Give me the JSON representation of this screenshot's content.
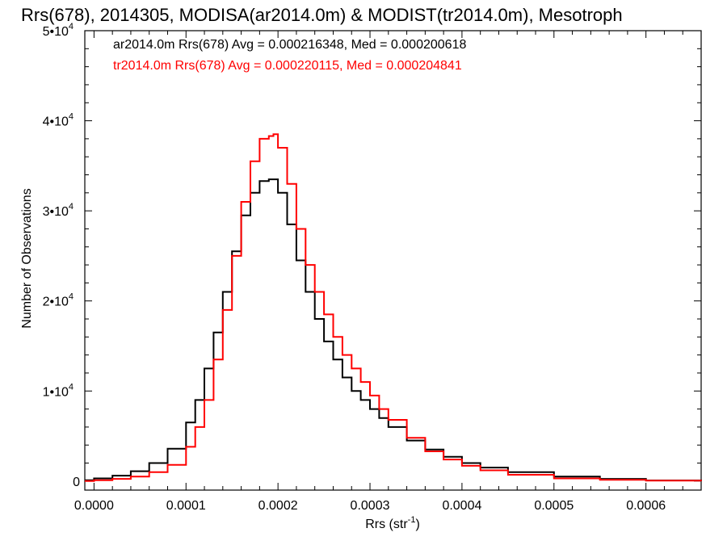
{
  "chart_data": {
    "type": "line",
    "title": "Rrs(678), 2014305, MODISA(ar2014.0m) & MODIST(tr2014.0m), Mesotroph",
    "xlabel": "Rrs (str",
    "xlabel_sup": "-1",
    "xlabel_suffix": ")",
    "ylabel": "Number of Observations",
    "xlim": [
      -1e-05,
      0.00066
    ],
    "ylim": [
      -1000,
      50000
    ],
    "x_ticks": [
      {
        "value": 0.0,
        "label": "0.0000"
      },
      {
        "value": 0.0001,
        "label": "0.0001"
      },
      {
        "value": 0.0002,
        "label": "0.0002"
      },
      {
        "value": 0.0003,
        "label": "0.0003"
      },
      {
        "value": 0.0004,
        "label": "0.0004"
      },
      {
        "value": 0.0005,
        "label": "0.0005"
      },
      {
        "value": 0.0006,
        "label": "0.0006"
      }
    ],
    "y_ticks": [
      {
        "value": 0,
        "base": "0",
        "exp": ""
      },
      {
        "value": 10000,
        "base": "1•10",
        "exp": "4"
      },
      {
        "value": 20000,
        "base": "2•10",
        "exp": "4"
      },
      {
        "value": 30000,
        "base": "3•10",
        "exp": "4"
      },
      {
        "value": 40000,
        "base": "4•10",
        "exp": "4"
      },
      {
        "value": 50000,
        "base": "5•10",
        "exp": "4"
      }
    ],
    "legend": [
      {
        "text": "ar2014.0m Rrs(678) Avg = 0.000216348, Med = 0.000200618",
        "color": "#000000"
      },
      {
        "text": "tr2014.0m Rrs(678) Avg = 0.000220115, Med = 0.000204841",
        "color": "#ff0000"
      }
    ],
    "series": [
      {
        "color": "#000000",
        "x": [
          -1e-05,
          0.0,
          2e-05,
          4e-05,
          6e-05,
          8e-05,
          0.0001,
          0.00011,
          0.00012,
          0.00013,
          0.00014,
          0.00015,
          0.00016,
          0.00017,
          0.00018,
          0.00019,
          0.0002,
          0.00021,
          0.00022,
          0.00023,
          0.00024,
          0.00025,
          0.00026,
          0.00027,
          0.00028,
          0.00029,
          0.0003,
          0.00031,
          0.00032,
          0.00034,
          0.00036,
          0.00038,
          0.0004,
          0.00042,
          0.00045,
          0.0005,
          0.00055,
          0.0006,
          0.00066
        ],
        "y": [
          100,
          300,
          600,
          1100,
          2000,
          3600,
          6500,
          9000,
          12500,
          16500,
          21000,
          25500,
          29500,
          32000,
          33300,
          33500,
          32000,
          28500,
          24500,
          21000,
          18000,
          15500,
          13500,
          11500,
          10000,
          9000,
          8000,
          7000,
          6000,
          4500,
          3500,
          2700,
          2000,
          1500,
          1000,
          500,
          250,
          80,
          0
        ]
      },
      {
        "color": "#ff0000",
        "x": [
          -1e-05,
          0.0,
          2e-05,
          4e-05,
          6e-05,
          8e-05,
          0.0001,
          0.00011,
          0.00012,
          0.00013,
          0.00014,
          0.00015,
          0.00016,
          0.00017,
          0.00018,
          0.00019,
          0.000195,
          0.0002,
          0.00021,
          0.00022,
          0.00023,
          0.00024,
          0.00025,
          0.00026,
          0.00027,
          0.00028,
          0.00029,
          0.0003,
          0.00031,
          0.00032,
          0.00034,
          0.00036,
          0.00038,
          0.0004,
          0.00042,
          0.00045,
          0.0005,
          0.00055,
          0.0006,
          0.00066
        ],
        "y": [
          0,
          100,
          250,
          500,
          1000,
          1800,
          3800,
          6000,
          9000,
          13500,
          19000,
          25000,
          31000,
          35500,
          38000,
          38300,
          38500,
          37000,
          33000,
          28000,
          24000,
          21000,
          18500,
          16000,
          14000,
          12500,
          11000,
          9500,
          8000,
          6800,
          4800,
          3300,
          2400,
          1700,
          1200,
          700,
          300,
          150,
          50,
          0
        ]
      }
    ]
  }
}
